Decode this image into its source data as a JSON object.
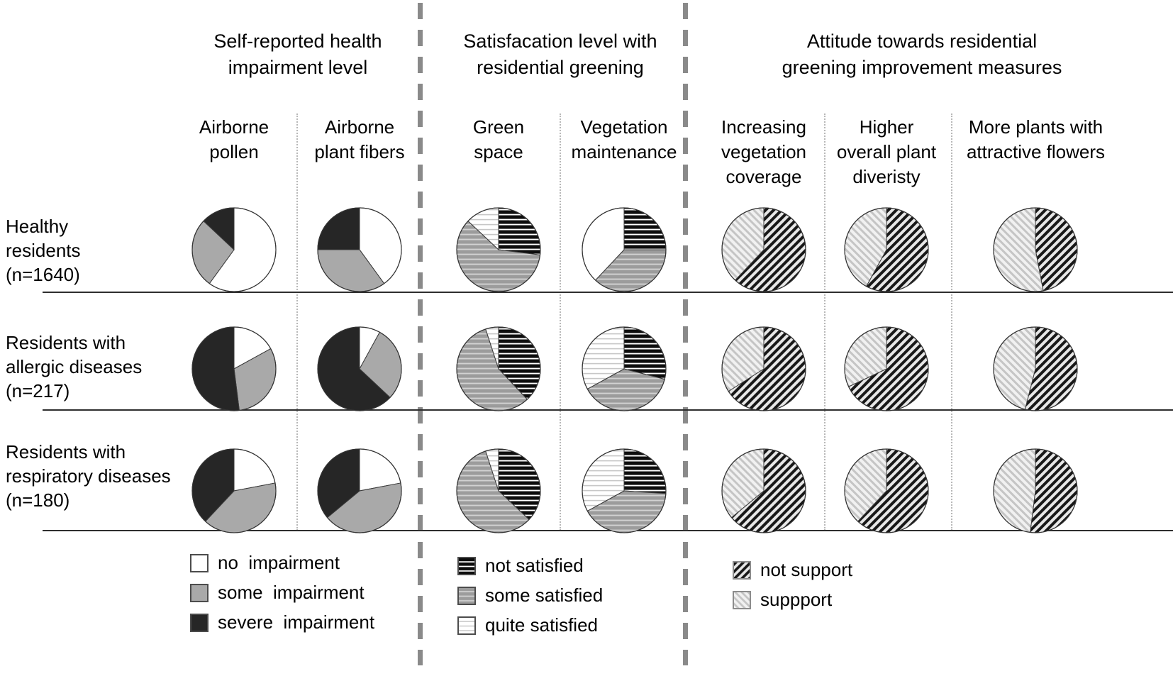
{
  "figure": {
    "background": "#ffffff",
    "text_color": "#000000",
    "divider_color": "#8a8a8a"
  },
  "section_headers": [
    {
      "lines": [
        "Self-reported health",
        "impairment level"
      ]
    },
    {
      "lines": [
        "Satisfacation level with",
        "residential greening"
      ]
    },
    {
      "lines": [
        "Attitude towards residential",
        "greening improvement measures"
      ]
    }
  ],
  "column_headers": [
    {
      "lines": [
        "Airborne",
        "pollen"
      ]
    },
    {
      "lines": [
        "Airborne",
        "plant fibers"
      ]
    },
    {
      "lines": [
        "Green",
        "space"
      ]
    },
    {
      "lines": [
        "Vegetation",
        "maintenance"
      ]
    },
    {
      "lines": [
        "Increasing",
        "vegetation",
        "coverage"
      ]
    },
    {
      "lines": [
        "Higher",
        "overall plant",
        "diveristy"
      ]
    },
    {
      "lines": [
        "More plants with",
        "attractive flowers"
      ]
    }
  ],
  "row_labels": [
    {
      "lines": [
        "Healthy",
        "residents",
        "(n=1640)"
      ]
    },
    {
      "lines": [
        "Residents with",
        "allergic diseases",
        "(n=217)"
      ]
    },
    {
      "lines": [
        "Residents with",
        "respiratory diseases",
        "(n=180)"
      ]
    }
  ],
  "legends": [
    {
      "items": [
        {
          "label": "no  impairment",
          "fill": "plain-white"
        },
        {
          "label": "some  impairment",
          "fill": "plain-gray"
        },
        {
          "label": "severe  impairment",
          "fill": "plain-dark"
        }
      ]
    },
    {
      "items": [
        {
          "label": "not satisfied",
          "fill": "hstripe-black"
        },
        {
          "label": "some satisfied",
          "fill": "hstripe-gray"
        },
        {
          "label": "quite satisfied",
          "fill": "hstripe-white"
        }
      ]
    },
    {
      "items": [
        {
          "label": "not support",
          "fill": "diag-dark"
        },
        {
          "label": "suppport",
          "fill": "diag-light"
        }
      ]
    }
  ],
  "chart_data": {
    "type": "pie",
    "note": "21 pies (3 resident groups x 7 measures); percentages estimated from slice angles, clockwise from 12 o'clock",
    "groups": [
      "Healthy residents (n=1640)",
      "Residents with allergic diseases (n=217)",
      "Residents with respiratory diseases (n=180)"
    ],
    "measures": [
      {
        "name": "Airborne pollen",
        "section": "Self-reported health impairment level",
        "categories": [
          "no impairment",
          "some impairment",
          "severe impairment"
        ],
        "fills": [
          "plain-white",
          "plain-gray",
          "plain-dark"
        ],
        "values": [
          [
            60,
            27,
            13
          ],
          [
            17,
            31,
            52
          ],
          [
            22,
            40,
            38
          ]
        ]
      },
      {
        "name": "Airborne plant fibers",
        "section": "Self-reported health impairment level",
        "categories": [
          "no impairment",
          "some impairment",
          "severe impairment"
        ],
        "fills": [
          "plain-white",
          "plain-gray",
          "plain-dark"
        ],
        "values": [
          [
            40,
            35,
            25
          ],
          [
            8,
            29,
            63
          ],
          [
            22,
            42,
            36
          ]
        ]
      },
      {
        "name": "Green space",
        "section": "Satisfacation level with residential greening",
        "categories": [
          "not satisfied",
          "some satisfied",
          "quite satisfied"
        ],
        "fills": [
          "hstripe-black",
          "hstripe-gray",
          "hstripe-white"
        ],
        "values": [
          [
            27,
            60,
            13
          ],
          [
            38,
            57,
            5
          ],
          [
            37,
            58,
            5
          ]
        ]
      },
      {
        "name": "Vegetation maintenance",
        "section": "Satisfacation level with residential greening",
        "categories": [
          "not satisfied",
          "some satisfied",
          "quite satisfied"
        ],
        "fills": [
          "hstripe-black",
          "hstripe-gray",
          "hstripe-white"
        ],
        "fills_by_row": {
          "0": [
            "hstripe-black",
            "hstripe-gray",
            "plain-white"
          ]
        },
        "values": [
          [
            25,
            37,
            38
          ],
          [
            29,
            38,
            33
          ],
          [
            26,
            41,
            33
          ]
        ]
      },
      {
        "name": "Increasing vegetation coverage",
        "section": "Attitude towards residential greening improvement measures",
        "categories": [
          "not support",
          "support"
        ],
        "fills": [
          "diag-dark",
          "diag-light"
        ],
        "values": [
          [
            62,
            38
          ],
          [
            66,
            34
          ],
          [
            64,
            36
          ]
        ]
      },
      {
        "name": "Higher overall plant diveristy",
        "section": "Attitude towards residential greening improvement measures",
        "categories": [
          "not support",
          "support"
        ],
        "fills": [
          "diag-dark",
          "diag-light"
        ],
        "values": [
          [
            58,
            42
          ],
          [
            68,
            32
          ],
          [
            62,
            38
          ]
        ]
      },
      {
        "name": "More plants with attractive flowers",
        "section": "Attitude towards residential greening improvement measures",
        "categories": [
          "not support",
          "support"
        ],
        "fills": [
          "diag-dark",
          "diag-light"
        ],
        "values": [
          [
            47,
            53
          ],
          [
            54,
            46
          ],
          [
            52,
            48
          ]
        ]
      }
    ]
  }
}
